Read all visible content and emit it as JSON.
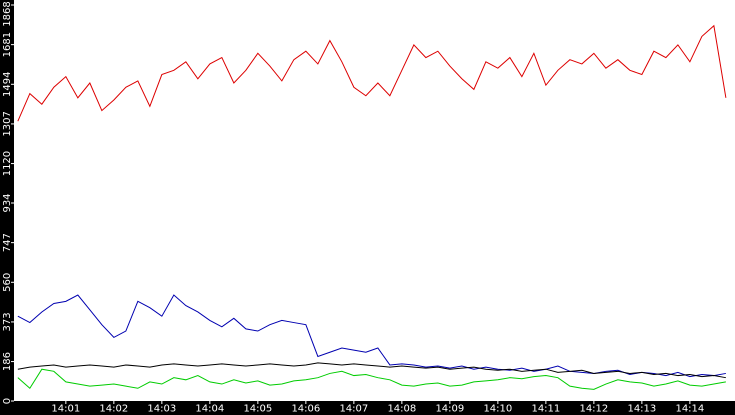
{
  "chart_data": {
    "type": "line",
    "x": [
      0,
      0.25,
      0.5,
      0.75,
      1,
      1.25,
      1.5,
      1.75,
      2,
      2.25,
      2.5,
      2.75,
      3,
      3.25,
      3.5,
      3.75,
      4,
      4.25,
      4.5,
      4.75,
      5,
      5.25,
      5.5,
      5.75,
      6,
      6.25,
      6.5,
      6.75,
      7,
      7.25,
      7.5,
      7.75,
      8,
      8.25,
      8.5,
      8.75,
      9,
      9.25,
      9.5,
      9.75,
      10,
      10.25,
      10.5,
      10.75,
      11,
      11.25,
      11.5,
      11.75,
      12,
      12.25,
      12.5,
      12.75,
      13,
      13.25,
      13.5,
      13.75,
      14,
      14.25,
      14.5,
      14.75
    ],
    "series": [
      {
        "color": "#dd0000",
        "values": [
          1320,
          1450,
          1400,
          1480,
          1530,
          1430,
          1500,
          1370,
          1420,
          1480,
          1510,
          1390,
          1540,
          1560,
          1600,
          1520,
          1590,
          1620,
          1500,
          1560,
          1640,
          1580,
          1510,
          1610,
          1650,
          1590,
          1700,
          1600,
          1480,
          1440,
          1500,
          1440,
          1560,
          1680,
          1620,
          1650,
          1580,
          1520,
          1470,
          1600,
          1570,
          1620,
          1530,
          1640,
          1490,
          1560,
          1610,
          1590,
          1640,
          1570,
          1610,
          1560,
          1540,
          1650,
          1620,
          1680,
          1600,
          1720,
          1770,
          1430
        ]
      },
      {
        "color": "#0000b0",
        "values": [
          400,
          370,
          420,
          460,
          470,
          500,
          430,
          360,
          300,
          330,
          470,
          440,
          400,
          500,
          450,
          420,
          380,
          350,
          390,
          340,
          330,
          360,
          380,
          370,
          360,
          210,
          230,
          250,
          240,
          230,
          250,
          170,
          175,
          170,
          160,
          165,
          155,
          165,
          150,
          160,
          150,
          145,
          155,
          140,
          150,
          165,
          140,
          135,
          130,
          140,
          145,
          125,
          135,
          130,
          120,
          135,
          115,
          125,
          120,
          130
        ]
      },
      {
        "color": "#000000",
        "values": [
          150,
          160,
          165,
          170,
          160,
          165,
          170,
          165,
          160,
          170,
          165,
          160,
          170,
          175,
          170,
          165,
          170,
          175,
          170,
          165,
          170,
          175,
          170,
          165,
          170,
          180,
          175,
          170,
          175,
          170,
          165,
          160,
          165,
          160,
          155,
          160,
          150,
          155,
          160,
          150,
          145,
          150,
          140,
          145,
          150,
          135,
          140,
          145,
          130,
          135,
          140,
          130,
          135,
          125,
          130,
          120,
          125,
          115,
          120,
          110
        ]
      },
      {
        "color": "#00cc00",
        "values": [
          110,
          60,
          150,
          140,
          90,
          80,
          70,
          75,
          80,
          70,
          60,
          90,
          80,
          110,
          100,
          120,
          90,
          80,
          100,
          85,
          95,
          75,
          80,
          95,
          100,
          110,
          130,
          140,
          120,
          125,
          110,
          100,
          75,
          70,
          80,
          85,
          70,
          75,
          90,
          95,
          100,
          110,
          105,
          115,
          120,
          110,
          70,
          60,
          55,
          80,
          100,
          90,
          85,
          70,
          80,
          95,
          75,
          70,
          80,
          90
        ]
      }
    ],
    "xlim": [
      -0.08,
      14.94
    ],
    "xticks": [
      {
        "value": 1,
        "label": "14:01"
      },
      {
        "value": 2,
        "label": "14:02"
      },
      {
        "value": 3,
        "label": "14:03"
      },
      {
        "value": 4,
        "label": "14:04"
      },
      {
        "value": 5,
        "label": "14:05"
      },
      {
        "value": 6,
        "label": "14:06"
      },
      {
        "value": 7,
        "label": "14:07"
      },
      {
        "value": 8,
        "label": "14:08"
      },
      {
        "value": 9,
        "label": "14:09"
      },
      {
        "value": 10,
        "label": "14:10"
      },
      {
        "value": 11,
        "label": "14:11"
      },
      {
        "value": 12,
        "label": "14:12"
      },
      {
        "value": 13,
        "label": "14:13"
      },
      {
        "value": 14,
        "label": "14:14"
      }
    ],
    "ylim": [
      0,
      1868
    ],
    "yticks": [
      0,
      186,
      373,
      560,
      747,
      934,
      1120,
      1307,
      1494,
      1681,
      1868
    ],
    "grid": false
  }
}
